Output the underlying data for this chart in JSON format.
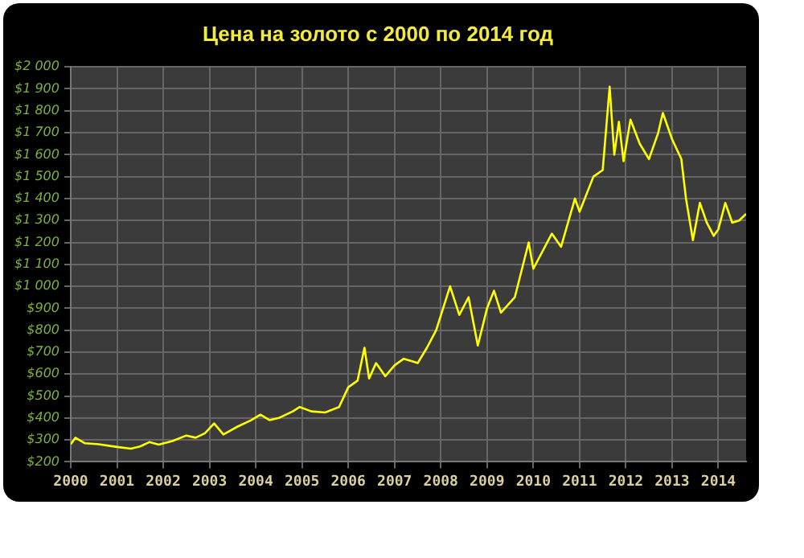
{
  "chart_data": {
    "type": "line",
    "title": "Цена на золото с 2000 по 2014 год",
    "x": [
      2000.0,
      2000.1,
      2000.3,
      2000.6,
      2001.0,
      2001.3,
      2001.5,
      2001.7,
      2001.9,
      2002.2,
      2002.5,
      2002.7,
      2002.9,
      2003.1,
      2003.3,
      2003.6,
      2003.9,
      2004.1,
      2004.3,
      2004.5,
      2004.8,
      2004.95,
      2005.2,
      2005.5,
      2005.8,
      2006.0,
      2006.2,
      2006.35,
      2006.45,
      2006.6,
      2006.8,
      2007.0,
      2007.2,
      2007.5,
      2007.7,
      2007.9,
      2008.2,
      2008.4,
      2008.6,
      2008.8,
      2009.0,
      2009.15,
      2009.3,
      2009.6,
      2009.9,
      2010.0,
      2010.4,
      2010.6,
      2010.9,
      2011.0,
      2011.3,
      2011.5,
      2011.65,
      2011.75,
      2011.85,
      2011.95,
      2012.1,
      2012.3,
      2012.5,
      2012.7,
      2012.8,
      2013.0,
      2013.2,
      2013.3,
      2013.45,
      2013.6,
      2013.75,
      2013.9,
      2014.0,
      2014.15,
      2014.3,
      2014.45,
      2014.6
    ],
    "series": [
      {
        "color": "#ffff00",
        "values": [
          280,
          310,
          285,
          280,
          268,
          260,
          270,
          290,
          278,
          295,
          320,
          310,
          330,
          375,
          325,
          360,
          390,
          415,
          390,
          400,
          430,
          450,
          430,
          425,
          450,
          540,
          570,
          720,
          580,
          650,
          590,
          640,
          670,
          650,
          720,
          800,
          1000,
          870,
          950,
          730,
          900,
          980,
          880,
          950,
          1200,
          1080,
          1240,
          1180,
          1400,
          1340,
          1500,
          1530,
          1910,
          1600,
          1750,
          1570,
          1760,
          1650,
          1580,
          1700,
          1790,
          1670,
          1580,
          1400,
          1210,
          1380,
          1290,
          1230,
          1260,
          1380,
          1290,
          1300,
          1330
        ]
      }
    ],
    "xlim": [
      2000,
      2014.6
    ],
    "xticks": [
      2000,
      2001,
      2002,
      2003,
      2004,
      2005,
      2006,
      2007,
      2008,
      2009,
      2010,
      2011,
      2012,
      2013,
      2014
    ],
    "ylim": [
      200,
      2000
    ],
    "yticks": [
      {
        "value": 200,
        "label": "$200"
      },
      {
        "value": 300,
        "label": "$300"
      },
      {
        "value": 400,
        "label": "$400"
      },
      {
        "value": 500,
        "label": "$500"
      },
      {
        "value": 600,
        "label": "$600"
      },
      {
        "value": 700,
        "label": "$700"
      },
      {
        "value": 800,
        "label": "$800"
      },
      {
        "value": 900,
        "label": "$900"
      },
      {
        "value": 1000,
        "label": "$1 000"
      },
      {
        "value": 1100,
        "label": "$1 100"
      },
      {
        "value": 1200,
        "label": "$1 200"
      },
      {
        "value": 1300,
        "label": "$1 300"
      },
      {
        "value": 1400,
        "label": "$1 400"
      },
      {
        "value": 1500,
        "label": "$1 500"
      },
      {
        "value": 1600,
        "label": "$1 600"
      },
      {
        "value": 1700,
        "label": "$1 700"
      },
      {
        "value": 1800,
        "label": "$1 800"
      },
      {
        "value": 1900,
        "label": "$1 900"
      },
      {
        "value": 2000,
        "label": "$2 000"
      }
    ],
    "grid": true,
    "legend": false,
    "marker": "none",
    "line_style": "solid"
  }
}
